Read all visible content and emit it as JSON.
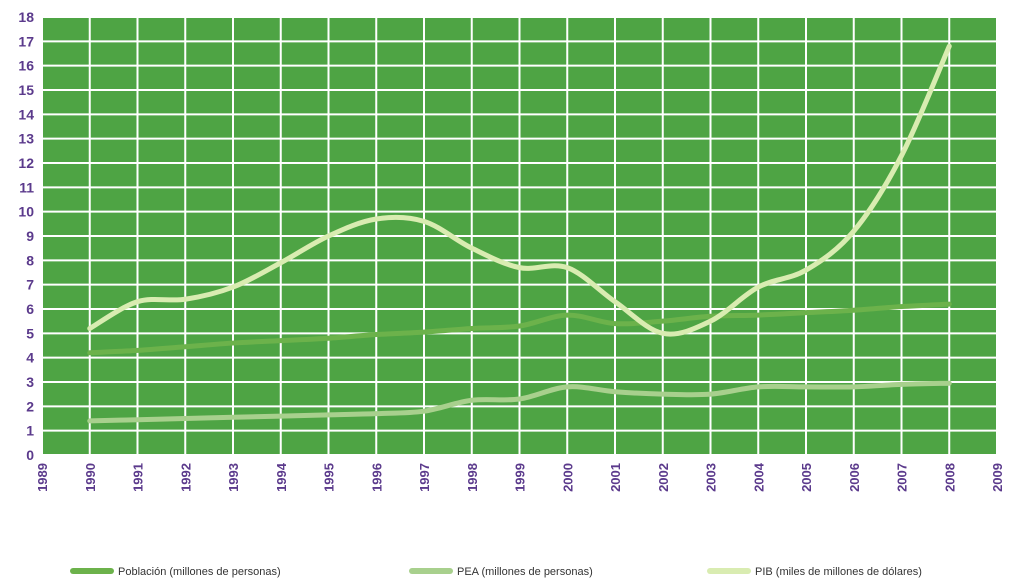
{
  "chart_data": {
    "type": "line",
    "title": "",
    "xlabel": "",
    "ylabel": "",
    "xlim": [
      1989,
      2009
    ],
    "ylim": [
      0,
      18
    ],
    "grid": true,
    "legend_position": "bottom",
    "x_ticks": [
      "1989",
      "1990",
      "1991",
      "1992",
      "1993",
      "1994",
      "1995",
      "1996",
      "1997",
      "1998",
      "1999",
      "2000",
      "2001",
      "2002",
      "2003",
      "2004",
      "2005",
      "2006",
      "2007",
      "2008",
      "2009"
    ],
    "y_ticks": [
      "0",
      "1",
      "2",
      "3",
      "4",
      "5",
      "6",
      "7",
      "8",
      "9",
      "10",
      "11",
      "12",
      "13",
      "14",
      "15",
      "16",
      "17",
      "18"
    ],
    "x": [
      1990,
      1991,
      1992,
      1993,
      1994,
      1995,
      1996,
      1997,
      1998,
      1999,
      2000,
      2001,
      2002,
      2003,
      2004,
      2005,
      2006,
      2007,
      2008
    ],
    "series": [
      {
        "name": "Población (millones de personas)",
        "color": "#6cb24b",
        "values": [
          4.2,
          4.3,
          4.45,
          4.6,
          4.7,
          4.8,
          4.95,
          5.05,
          5.2,
          5.3,
          5.75,
          5.4,
          5.5,
          5.7,
          5.75,
          5.85,
          5.95,
          6.1,
          6.2
        ]
      },
      {
        "name": "PEA (millones de personas)",
        "color": "#a8d08d",
        "values": [
          1.4,
          1.45,
          1.5,
          1.55,
          1.6,
          1.65,
          1.7,
          1.8,
          2.25,
          2.3,
          2.8,
          2.6,
          2.5,
          2.5,
          2.8,
          2.8,
          2.8,
          2.9,
          2.95
        ]
      },
      {
        "name": "PIB (miles de millones de dólares)",
        "color": "#d9ecb1",
        "values": [
          5.2,
          6.3,
          6.4,
          6.9,
          7.9,
          9.0,
          9.7,
          9.6,
          8.5,
          7.7,
          7.7,
          6.3,
          5.0,
          5.5,
          6.9,
          7.6,
          9.2,
          12.3,
          16.8
        ]
      }
    ]
  },
  "style": {
    "plot_background": "#4ea444",
    "grid_color": "#ffffff",
    "axis_label_color": "#5b3a8c",
    "legend_text_color": "#333333"
  }
}
